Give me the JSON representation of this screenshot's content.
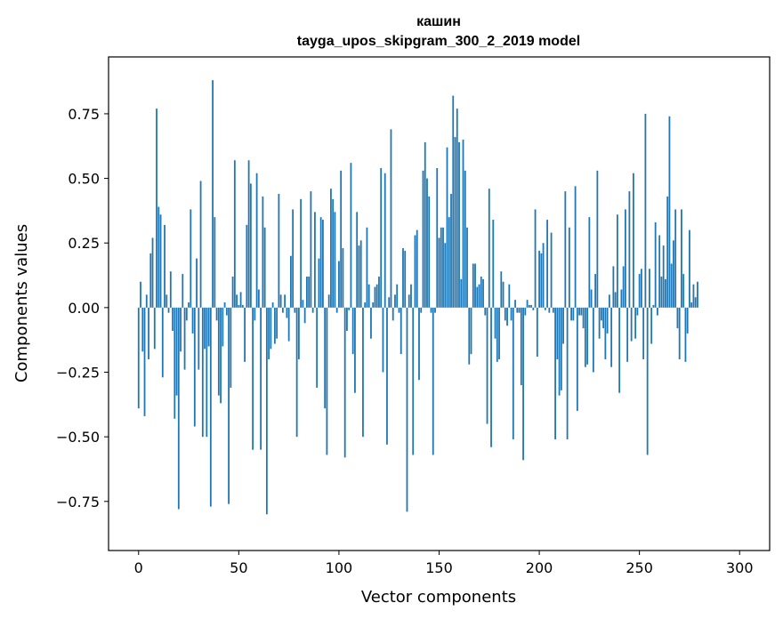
{
  "chart_data": {
    "type": "bar",
    "title_line1": "кашин",
    "title_line2": "tayga_upos_skipgram_300_2_2019 model",
    "xlabel": "Vector components",
    "ylabel": "Components values",
    "xlim": [
      -15,
      315
    ],
    "ylim": [
      -0.94,
      0.97
    ],
    "xticks": [
      0,
      50,
      100,
      150,
      200,
      250,
      300
    ],
    "xtick_labels": [
      "0",
      "50",
      "100",
      "150",
      "200",
      "250",
      "300"
    ],
    "yticks": [
      -0.75,
      -0.5,
      -0.25,
      0.0,
      0.25,
      0.5,
      0.75
    ],
    "ytick_labels": [
      "−0.75",
      "−0.50",
      "−0.25",
      "0.00",
      "0.25",
      "0.50",
      "0.75"
    ],
    "bar_color": "#1f77b4",
    "grid": false,
    "values": [
      -0.39,
      0.1,
      -0.17,
      -0.42,
      0.05,
      -0.2,
      0.21,
      0.27,
      -0.16,
      0.77,
      0.39,
      0.36,
      -0.27,
      0.32,
      0.05,
      -0.02,
      0.14,
      -0.09,
      -0.43,
      -0.34,
      -0.78,
      -0.17,
      0.13,
      -0.24,
      -0.05,
      0.02,
      0.38,
      -0.1,
      -0.46,
      0.19,
      -0.24,
      0.49,
      -0.5,
      -0.16,
      -0.5,
      -0.15,
      -0.77,
      0.88,
      0.35,
      -0.05,
      -0.34,
      -0.37,
      -0.15,
      0.02,
      -0.03,
      -0.76,
      -0.31,
      0.12,
      0.57,
      0.05,
      0.01,
      0.06,
      0.01,
      -0.21,
      0.32,
      0.57,
      0.48,
      -0.55,
      -0.05,
      0.52,
      0.07,
      -0.55,
      0.43,
      0.31,
      -0.8,
      -0.2,
      -0.16,
      0.02,
      -0.14,
      -0.12,
      0.44,
      0.05,
      -0.02,
      0.05,
      -0.04,
      -0.13,
      0.2,
      0.38,
      -0.02,
      -0.5,
      -0.2,
      0.42,
      0.03,
      -0.06,
      0.12,
      0.12,
      0.45,
      -0.02,
      0.37,
      -0.31,
      0.19,
      0.35,
      0.34,
      -0.39,
      -0.57,
      0.05,
      0.46,
      0.42,
      0.37,
      -0.02,
      0.18,
      0.53,
      0.23,
      -0.58,
      -0.09,
      -0.01,
      0.56,
      -0.18,
      -0.33,
      0.37,
      0.24,
      0.26,
      -0.5,
      0.02,
      0.31,
      0.09,
      -0.12,
      0.02,
      0.08,
      0.09,
      0.12,
      0.54,
      -0.25,
      0.52,
      -0.53,
      0.04,
      0.69,
      -0.05,
      0.05,
      0.09,
      -0.02,
      -0.18,
      0.23,
      0.22,
      -0.79,
      0.05,
      0.09,
      -0.57,
      0.28,
      0.3,
      -0.28,
      -0.02,
      0.53,
      0.64,
      0.5,
      0.43,
      -0.02,
      -0.57,
      -0.02,
      0.54,
      0.27,
      0.31,
      0.31,
      0.25,
      0.62,
      0.35,
      0.44,
      0.82,
      0.66,
      0.77,
      0.64,
      0.11,
      0.65,
      0.53,
      0.31,
      -0.22,
      -0.18,
      0.17,
      0.17,
      0.08,
      0.09,
      0.12,
      0.11,
      -0.03,
      -0.45,
      0.46,
      -0.54,
      0.34,
      -0.12,
      -0.21,
      -0.2,
      0.14,
      0.1,
      -0.05,
      -0.07,
      0.09,
      -0.05,
      -0.51,
      0.03,
      -0.02,
      -0.02,
      -0.3,
      -0.59,
      -0.03,
      0.03,
      0.01,
      0.01,
      -0.01,
      0.38,
      -0.19,
      0.22,
      0.21,
      0.25,
      -0.01,
      0.34,
      -0.02,
      0.29,
      -0.02,
      -0.51,
      -0.2,
      -0.34,
      -0.32,
      -0.14,
      0.45,
      -0.51,
      0.31,
      -0.05,
      -0.05,
      0.47,
      -0.4,
      -0.03,
      -0.03,
      -0.08,
      -0.23,
      -0.22,
      0.35,
      0.07,
      -0.25,
      0.13,
      0.53,
      -0.12,
      -0.05,
      -0.08,
      -0.2,
      -0.1,
      0.05,
      -0.23,
      0.16,
      0.06,
      0.36,
      -0.33,
      0.07,
      0.16,
      0.38,
      -0.21,
      0.45,
      -0.13,
      0.52,
      -0.12,
      -0.03,
      0.13,
      0.15,
      -0.2,
      0.75,
      -0.57,
      0.15,
      -0.14,
      0.01,
      0.33,
      -0.03,
      0.28,
      0.12,
      0.24,
      0.11,
      0.43,
      0.74,
      0.17,
      0.26,
      0.38,
      -0.08,
      -0.2,
      0.38,
      0.13,
      -0.21,
      -0.1,
      0.3,
      0.02,
      0.09,
      0.04,
      0.1
    ]
  }
}
